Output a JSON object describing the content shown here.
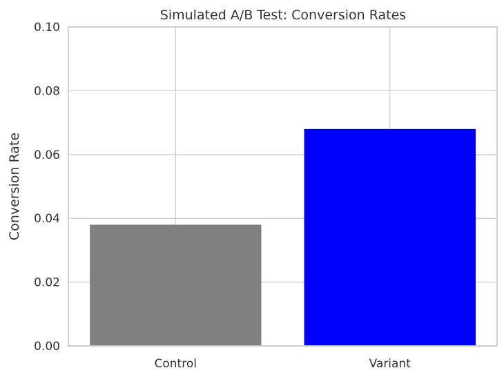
{
  "chart_data": {
    "type": "bar",
    "title": "Simulated A/B Test: Conversion Rates",
    "xlabel": "",
    "ylabel": "Conversion Rate",
    "categories": [
      "Control",
      "Variant"
    ],
    "values": [
      0.038,
      0.068
    ],
    "colors": [
      "#808080",
      "#0000ff"
    ],
    "ylim": [
      0,
      0.1
    ],
    "yticks": [
      "0.00",
      "0.02",
      "0.04",
      "0.06",
      "0.08",
      "0.10"
    ],
    "grid": true,
    "legend": "none"
  }
}
